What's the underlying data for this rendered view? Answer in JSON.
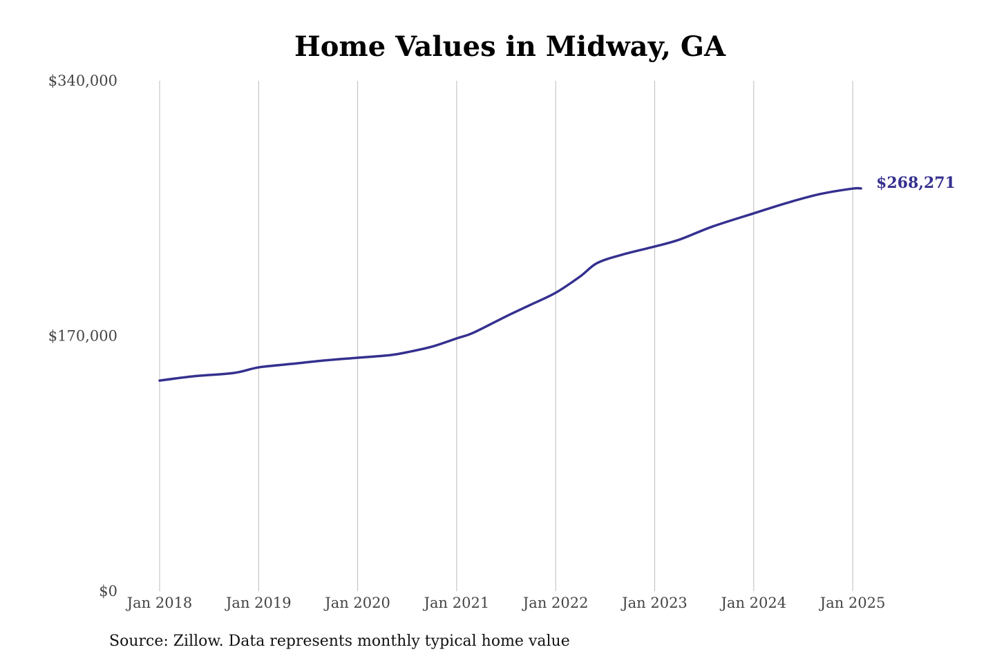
{
  "chart_data": {
    "type": "line",
    "title": "Home Values in Midway, GA",
    "xlabel": "",
    "ylabel": "",
    "ylim": [
      0,
      340000
    ],
    "y_ticks": [
      "$0",
      "$170,000",
      "$340,000"
    ],
    "y_tick_values": [
      0,
      170000,
      340000
    ],
    "x_ticks": [
      "Jan 2018",
      "Jan 2019",
      "Jan 2020",
      "Jan 2021",
      "Jan 2022",
      "Jan 2023",
      "Jan 2024",
      "Jan 2025"
    ],
    "x_tick_dates": [
      "2018-01",
      "2019-01",
      "2020-01",
      "2021-01",
      "2022-01",
      "2023-01",
      "2024-01",
      "2025-01"
    ],
    "grid": "vertical",
    "line_color": "#35308f",
    "end_label": "$268,271",
    "series": [
      {
        "x": [
          "2018-01",
          "2018-05",
          "2018-10",
          "2019-01",
          "2019-05",
          "2019-09",
          "2020-01",
          "2020-05",
          "2020-07",
          "2020-10",
          "2021-01",
          "2021-03",
          "2021-07",
          "2021-10",
          "2022-01",
          "2022-04",
          "2022-06",
          "2022-09",
          "2023-01",
          "2023-04",
          "2023-08",
          "2024-01",
          "2024-05",
          "2024-09",
          "2025-01",
          "2025-02"
        ],
        "values": [
          140300,
          143100,
          145400,
          149100,
          151400,
          153700,
          155500,
          157300,
          159200,
          162900,
          168400,
          172100,
          183100,
          190900,
          198800,
          209800,
          218500,
          224100,
          229600,
          234200,
          242900,
          251700,
          258600,
          264500,
          268200,
          268271
        ]
      }
    ]
  },
  "source": "Source: Zillow. Data represents monthly typical home value"
}
